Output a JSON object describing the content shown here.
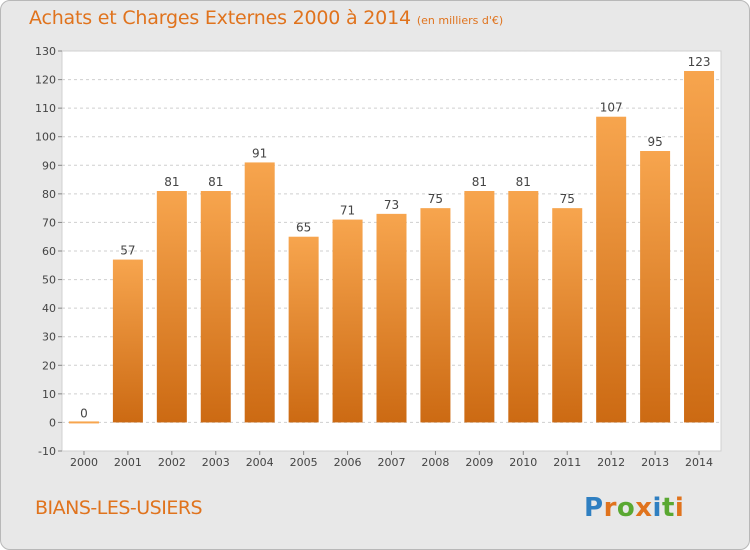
{
  "header": {
    "title": "Achats et Charges Externes 2000 à 2014",
    "subtitle": "(en milliers d'€)"
  },
  "footer": {
    "commune": "BIANS-LES-USIERS",
    "logo_text": "Proxiti"
  },
  "colors": {
    "title": "#e0731d",
    "bar_top": "#f7a54e",
    "bar_bottom": "#cc6a13",
    "plot_background": "#ffffff",
    "page_background": "#e8e8e8"
  },
  "chart_data": {
    "type": "bar",
    "title": "Achats et Charges Externes 2000 à 2014",
    "subtitle": "(en milliers d'€)",
    "categories": [
      "2000",
      "2001",
      "2002",
      "2003",
      "2004",
      "2005",
      "2006",
      "2007",
      "2008",
      "2009",
      "2010",
      "2011",
      "2012",
      "2013",
      "2014"
    ],
    "values": [
      0,
      57,
      81,
      81,
      91,
      65,
      71,
      73,
      75,
      81,
      81,
      75,
      107,
      95,
      123
    ],
    "ylim": [
      -10,
      130
    ],
    "yticks": [
      -10,
      0,
      10,
      20,
      30,
      40,
      50,
      60,
      70,
      80,
      90,
      100,
      110,
      120,
      130
    ],
    "grid": "horizontal dashed",
    "legend": "none"
  }
}
